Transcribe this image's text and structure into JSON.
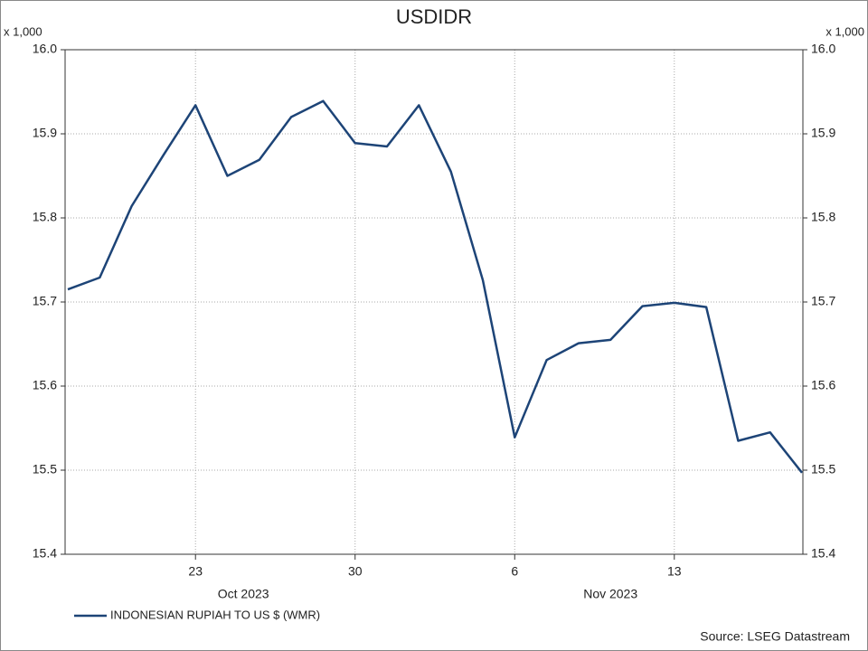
{
  "chart_data": {
    "type": "line",
    "title": "USDIDR",
    "y_unit_label": "x 1,000",
    "categories": [
      null,
      null,
      null,
      null,
      "23",
      null,
      null,
      null,
      null,
      "30",
      null,
      null,
      null,
      null,
      "6",
      null,
      null,
      null,
      null,
      "13",
      null,
      null,
      null,
      null
    ],
    "x_groups": [
      "Oct 2023",
      "Nov 2023"
    ],
    "series": [
      {
        "name": "INDONESIAN RUPIAH TO US $ (WMR)",
        "color": "#1d4477",
        "values": [
          15.715,
          15.729,
          15.814,
          15.875,
          15.934,
          15.85,
          15.869,
          15.92,
          15.939,
          15.889,
          15.885,
          15.934,
          15.855,
          15.726,
          15.539,
          15.631,
          15.651,
          15.655,
          15.695,
          15.699,
          15.694,
          15.535,
          15.545,
          15.497
        ]
      }
    ],
    "ylim": [
      15.4,
      16.0
    ],
    "yticks": [
      15.4,
      15.5,
      15.6,
      15.7,
      15.8,
      15.9,
      {
        "value": 16.0,
        "label": "16.0"
      }
    ],
    "grid": true,
    "legend": "bottom-left",
    "source": "Source: LSEG Datastream"
  }
}
